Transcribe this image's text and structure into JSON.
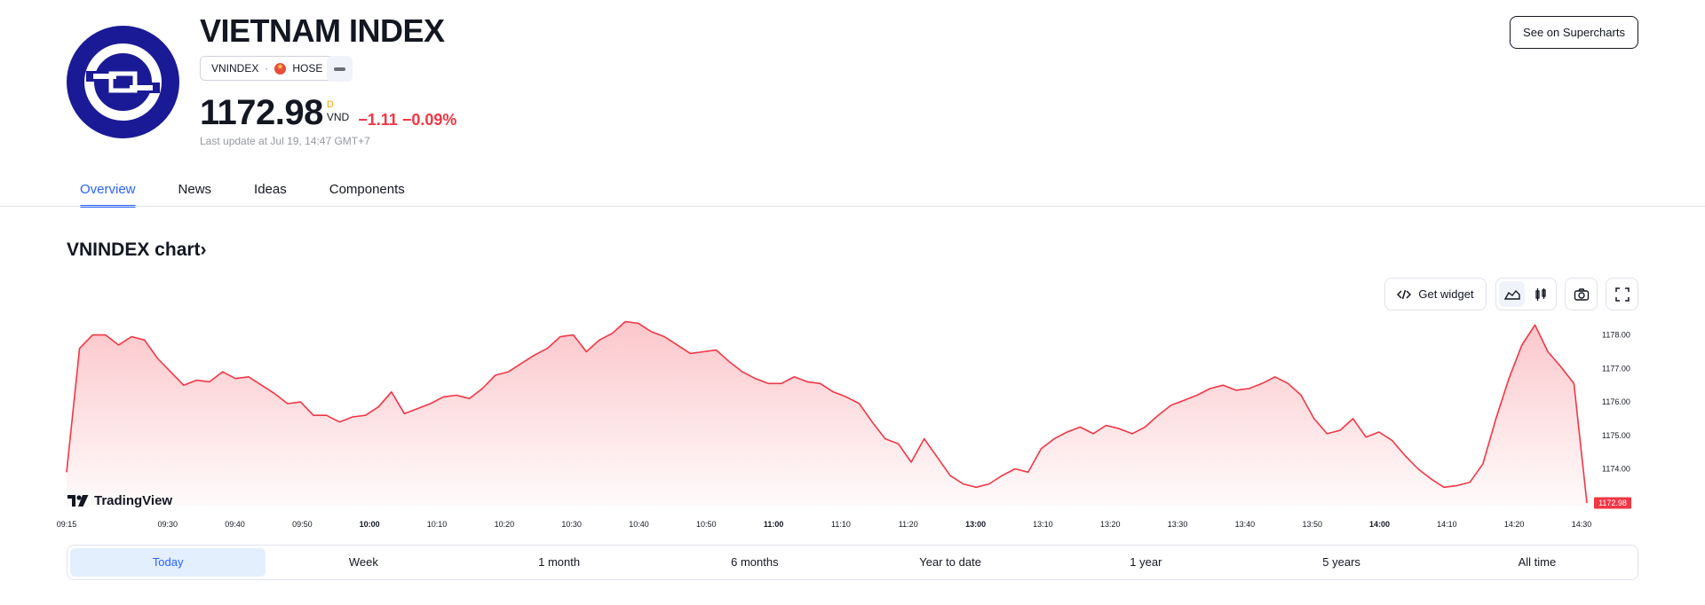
{
  "header": {
    "title": "VIETNAM INDEX",
    "symbol": "VNINDEX",
    "separator": "·",
    "exchange": "HOSE",
    "price": "1172.98",
    "price_period": "D",
    "currency": "VND",
    "change": "−1.11",
    "change_percent": "−0.09%",
    "last_update": "Last update at Jul 19, 14:47 GMT+7",
    "supercharts_label": "See on Supercharts"
  },
  "tabs": [
    {
      "label": "Overview",
      "active": true
    },
    {
      "label": "News",
      "active": false
    },
    {
      "label": "Ideas",
      "active": false
    },
    {
      "label": "Components",
      "active": false
    }
  ],
  "chart_section": {
    "title": "VNINDEX chart",
    "chevron": "›",
    "get_widget_label": "Get widget",
    "brand": "TradingView",
    "last_price_tag": "1172.98"
  },
  "ranges": [
    {
      "label": "Today",
      "selected": true
    },
    {
      "label": "Week",
      "selected": false
    },
    {
      "label": "1 month",
      "selected": false
    },
    {
      "label": "6 months",
      "selected": false
    },
    {
      "label": "Year to date",
      "selected": false
    },
    {
      "label": "1 year",
      "selected": false
    },
    {
      "label": "5 years",
      "selected": false
    },
    {
      "label": "All time",
      "selected": false
    }
  ],
  "icons": {
    "code": "code-icon",
    "area_style": "area-chart-icon",
    "candle_style": "candlestick-icon",
    "camera": "camera-icon",
    "fullscreen": "fullscreen-icon"
  },
  "colors": {
    "accent": "#2962ff",
    "negative": "#f23645",
    "logo_bg": "#1a1a96"
  },
  "chart_data": {
    "type": "area",
    "x_ticks": [
      "09:15",
      "09:30",
      "09:40",
      "09:50",
      "10:00",
      "10:10",
      "10:20",
      "10:30",
      "10:40",
      "10:50",
      "11:00",
      "11:10",
      "11:20",
      "13:00",
      "13:10",
      "13:20",
      "13:30",
      "13:40",
      "13:50",
      "14:00",
      "14:10",
      "14:20",
      "14:30"
    ],
    "bold_ticks": [
      "10:00",
      "11:00",
      "13:00",
      "14:00"
    ],
    "y_ticks": [
      "1178.00",
      "1177.00",
      "1176.00",
      "1175.00",
      "1174.00"
    ],
    "ylim": [
      1172.9,
      1178.6
    ],
    "last_value": 1172.98,
    "grid": false,
    "values": [
      1173.9,
      1177.6,
      1178.0,
      1178.0,
      1177.7,
      1177.95,
      1177.85,
      1177.3,
      1176.9,
      1176.5,
      1176.65,
      1176.6,
      1176.9,
      1176.7,
      1176.75,
      1176.5,
      1176.25,
      1175.95,
      1176.0,
      1175.6,
      1175.6,
      1175.4,
      1175.55,
      1175.6,
      1175.85,
      1176.3,
      1175.65,
      1175.8,
      1175.95,
      1176.15,
      1176.2,
      1176.1,
      1176.4,
      1176.8,
      1176.9,
      1177.15,
      1177.4,
      1177.6,
      1177.95,
      1178.0,
      1177.5,
      1177.85,
      1178.05,
      1178.4,
      1178.35,
      1178.1,
      1177.95,
      1177.7,
      1177.45,
      1177.5,
      1177.55,
      1177.2,
      1176.9,
      1176.7,
      1176.55,
      1176.55,
      1176.75,
      1176.6,
      1176.55,
      1176.3,
      1176.15,
      1175.95,
      1175.4,
      1174.9,
      1174.75,
      1174.2,
      1174.9,
      1174.35,
      1173.8,
      1173.55,
      1173.45,
      1173.55,
      1173.8,
      1174.0,
      1173.9,
      1174.6,
      1174.9,
      1175.1,
      1175.25,
      1175.05,
      1175.3,
      1175.2,
      1175.05,
      1175.25,
      1175.6,
      1175.9,
      1176.05,
      1176.2,
      1176.4,
      1176.5,
      1176.35,
      1176.4,
      1176.55,
      1176.75,
      1176.55,
      1176.2,
      1175.5,
      1175.05,
      1175.15,
      1175.5,
      1174.95,
      1175.1,
      1174.85,
      1174.4,
      1174.0,
      1173.7,
      1173.45,
      1173.5,
      1173.6,
      1174.15,
      1175.5,
      1176.7,
      1177.7,
      1178.3,
      1177.5,
      1177.05,
      1176.55,
      1172.98
    ]
  }
}
